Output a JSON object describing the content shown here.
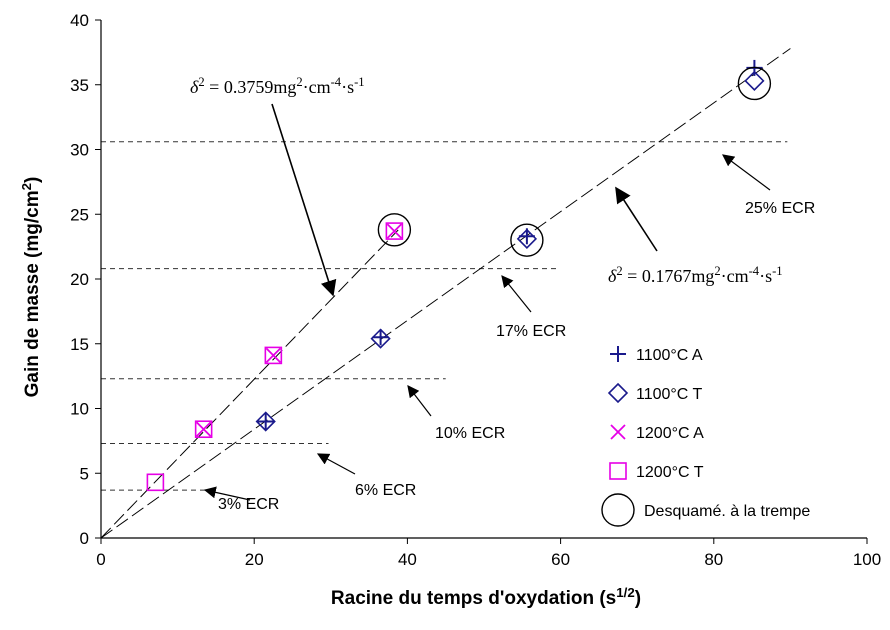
{
  "chart_data": {
    "type": "scatter",
    "title": "",
    "xlabel": "Racine du temps d'oxydation (s",
    "xlabel_sup": "1/2",
    "xlabel_end": ")",
    "ylabel": "Gain de masse (mg/cm",
    "ylabel_sup": "2",
    "ylabel_end": ")",
    "xlim": [
      0,
      100
    ],
    "ylim": [
      0,
      40
    ],
    "xticks": [
      0,
      20,
      40,
      60,
      80,
      100
    ],
    "yticks": [
      0,
      5,
      10,
      15,
      20,
      25,
      30,
      35,
      40
    ],
    "xtick_labels": [
      "0",
      "20",
      "40",
      "60",
      "80",
      "100"
    ],
    "ytick_labels": [
      "0",
      "5",
      "10",
      "15",
      "20",
      "25",
      "30",
      "35",
      "40"
    ],
    "grid": false,
    "legend_position": "bottom-right",
    "series": [
      {
        "name": "1100°C A",
        "marker": "plus",
        "color": "#1a1a8c",
        "points": [
          [
            21.5,
            9.0
          ],
          [
            36.5,
            15.5
          ],
          [
            55.6,
            23.3
          ],
          [
            85.3,
            36.3
          ]
        ]
      },
      {
        "name": "1100°C T",
        "marker": "diamond",
        "color": "#1a1a8c",
        "points": [
          [
            21.5,
            9.0
          ],
          [
            36.5,
            15.4
          ],
          [
            55.6,
            23.1
          ],
          [
            85.3,
            35.3
          ]
        ]
      },
      {
        "name": "1200°C A",
        "marker": "x",
        "color": "#e600e6",
        "points": [
          [
            13.4,
            8.4
          ],
          [
            22.5,
            14.1
          ],
          [
            38.3,
            23.7
          ]
        ]
      },
      {
        "name": "1200°C T",
        "marker": "square",
        "color": "#e600e6",
        "points": [
          [
            7.1,
            4.3
          ],
          [
            13.4,
            8.4
          ],
          [
            22.5,
            14.1
          ],
          [
            38.3,
            23.7
          ]
        ]
      },
      {
        "name": "Desquamé. à la trempe",
        "marker": "circle",
        "color": "#000000",
        "points": [
          [
            38.3,
            23.8
          ],
          [
            55.6,
            23.0
          ],
          [
            85.3,
            35.1
          ]
        ]
      }
    ],
    "fit_lines": [
      {
        "slope": 0.613,
        "x_range": [
          0,
          38.8
        ]
      },
      {
        "slope": 0.42,
        "x_range": [
          0,
          90
        ]
      }
    ],
    "ecr_levels": [
      {
        "label": "3% ECR",
        "y": 3.7,
        "x_range": [
          0,
          15
        ]
      },
      {
        "label": "6% ECR",
        "y": 7.3,
        "x_range": [
          0,
          29.7
        ]
      },
      {
        "label": "10% ECR",
        "y": 12.3,
        "x_range": [
          0,
          45
        ]
      },
      {
        "label": "17% ECR",
        "y": 20.8,
        "x_range": [
          0,
          59.7
        ]
      },
      {
        "label": "25% ECR",
        "y": 30.6,
        "x_range": [
          0,
          89.6
        ]
      }
    ],
    "formulas": {
      "upper": {
        "lhs": "δ",
        "lhs_sup": "2",
        "eq": " = 0.3759mg",
        "unit_sup1": "2",
        "mid": "·cm",
        "unit_sup2": "-4",
        "mid2": "·s",
        "unit_sup3": "-1"
      },
      "lower": {
        "lhs": "δ",
        "lhs_sup": "2",
        "eq": " = 0.1767mg",
        "unit_sup1": "2",
        "mid": "·cm",
        "unit_sup2": "-4",
        "mid2": "·s",
        "unit_sup3": "-1"
      }
    }
  }
}
